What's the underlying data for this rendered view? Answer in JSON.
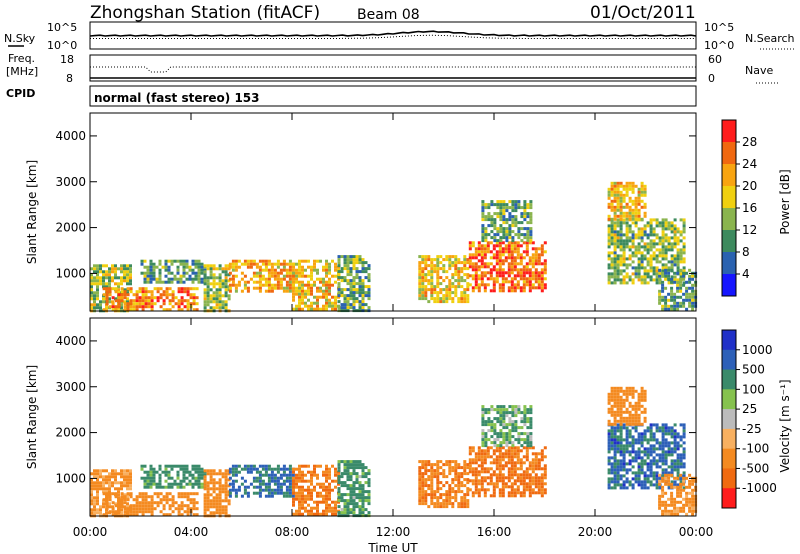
{
  "header": {
    "station": "Zhongshan Station (fitACF)",
    "beam": "Beam 08",
    "date": "01/Oct/2011",
    "cpid_label": "CPID",
    "cpid_text": "normal (fast stereo) 153"
  },
  "strips": {
    "nsky_label": "N.Sky",
    "nsky_ticks": [
      "10^5",
      "10^0"
    ],
    "nsearch_label": "N.Search",
    "nsearch_ticks": [
      "10^5",
      "10^0"
    ],
    "freq_label_line1": "Freq.",
    "freq_label_line2": "[MHz]",
    "freq_ticks": [
      "18",
      "8"
    ],
    "nave_label": "Nave",
    "nave_ticks": [
      "60",
      "0"
    ]
  },
  "panels": {
    "power_ylabel": "Slant Range [km]",
    "velocity_ylabel": "Slant Range [km]",
    "y_ticks": [
      "1000",
      "2000",
      "3000",
      "4000"
    ],
    "x_ticks": [
      "00:00",
      "04:00",
      "08:00",
      "12:00",
      "16:00",
      "20:00",
      "00:00"
    ],
    "xlabel": "Time UT"
  },
  "colorbars": {
    "power_label": "Power [dB]",
    "power_ticks": [
      "4",
      "8",
      "12",
      "16",
      "20",
      "24",
      "28"
    ],
    "power_colors": [
      "#1616ff",
      "#2a62b0",
      "#3d8a5e",
      "#8ab44e",
      "#f0d010",
      "#f8a410",
      "#f06810",
      "#ff1c1c"
    ],
    "velocity_label": "Velocity [m s⁻¹]",
    "velocity_ticks": [
      "1000",
      "500",
      "100",
      "25",
      "-25",
      "-100",
      "-500",
      "-1000"
    ],
    "velocity_colors": [
      "#2030c8",
      "#2d60b8",
      "#3a8a6a",
      "#86c24e",
      "#bcbcbc",
      "#f8b060",
      "#f48a20",
      "#f06a10",
      "#ff1c1c"
    ]
  },
  "chart_data": {
    "type": "heatmap",
    "x_range_hours": [
      0,
      24
    ],
    "y_range_km": [
      180,
      4500
    ],
    "power_scale_db": [
      0,
      30
    ],
    "velocity_scale_ms": [
      -1250,
      1250
    ],
    "regions": [
      {
        "t0": 0.0,
        "t1": 1.6,
        "r0": 200,
        "r1": 1200,
        "power": 14,
        "velocity": -120
      },
      {
        "t0": 0.5,
        "t1": 4.2,
        "r0": 200,
        "r1": 700,
        "power": 22,
        "velocity": -300
      },
      {
        "t0": 2.0,
        "t1": 4.5,
        "r0": 800,
        "r1": 1300,
        "power": 10,
        "velocity": 250
      },
      {
        "t0": 4.5,
        "t1": 5.5,
        "r0": 200,
        "r1": 1200,
        "power": 14,
        "velocity": -200
      },
      {
        "t0": 5.5,
        "t1": 8.0,
        "r0": 600,
        "r1": 1300,
        "power": 20,
        "velocity": 500
      },
      {
        "t0": 8.0,
        "t1": 9.8,
        "r0": 200,
        "r1": 1300,
        "power": 18,
        "velocity": -450
      },
      {
        "t0": 9.8,
        "t1": 11.0,
        "r0": 200,
        "r1": 1400,
        "power": 11,
        "velocity": 200
      },
      {
        "t0": 13.0,
        "t1": 15.0,
        "r0": 400,
        "r1": 1400,
        "power": 18,
        "velocity": -450
      },
      {
        "t0": 15.0,
        "t1": 18.0,
        "r0": 600,
        "r1": 1700,
        "power": 24,
        "velocity": -600
      },
      {
        "t0": 15.5,
        "t1": 17.5,
        "r0": 1700,
        "r1": 2600,
        "power": 11,
        "velocity": 100
      },
      {
        "t0": 20.5,
        "t1": 23.5,
        "r0": 800,
        "r1": 2200,
        "power": 13,
        "velocity": 600
      },
      {
        "t0": 20.5,
        "t1": 22.0,
        "r0": 2200,
        "r1": 3000,
        "power": 18,
        "velocity": -200
      },
      {
        "t0": 22.5,
        "t1": 24.0,
        "r0": 200,
        "r1": 1100,
        "power": 10,
        "velocity": -150
      }
    ]
  }
}
